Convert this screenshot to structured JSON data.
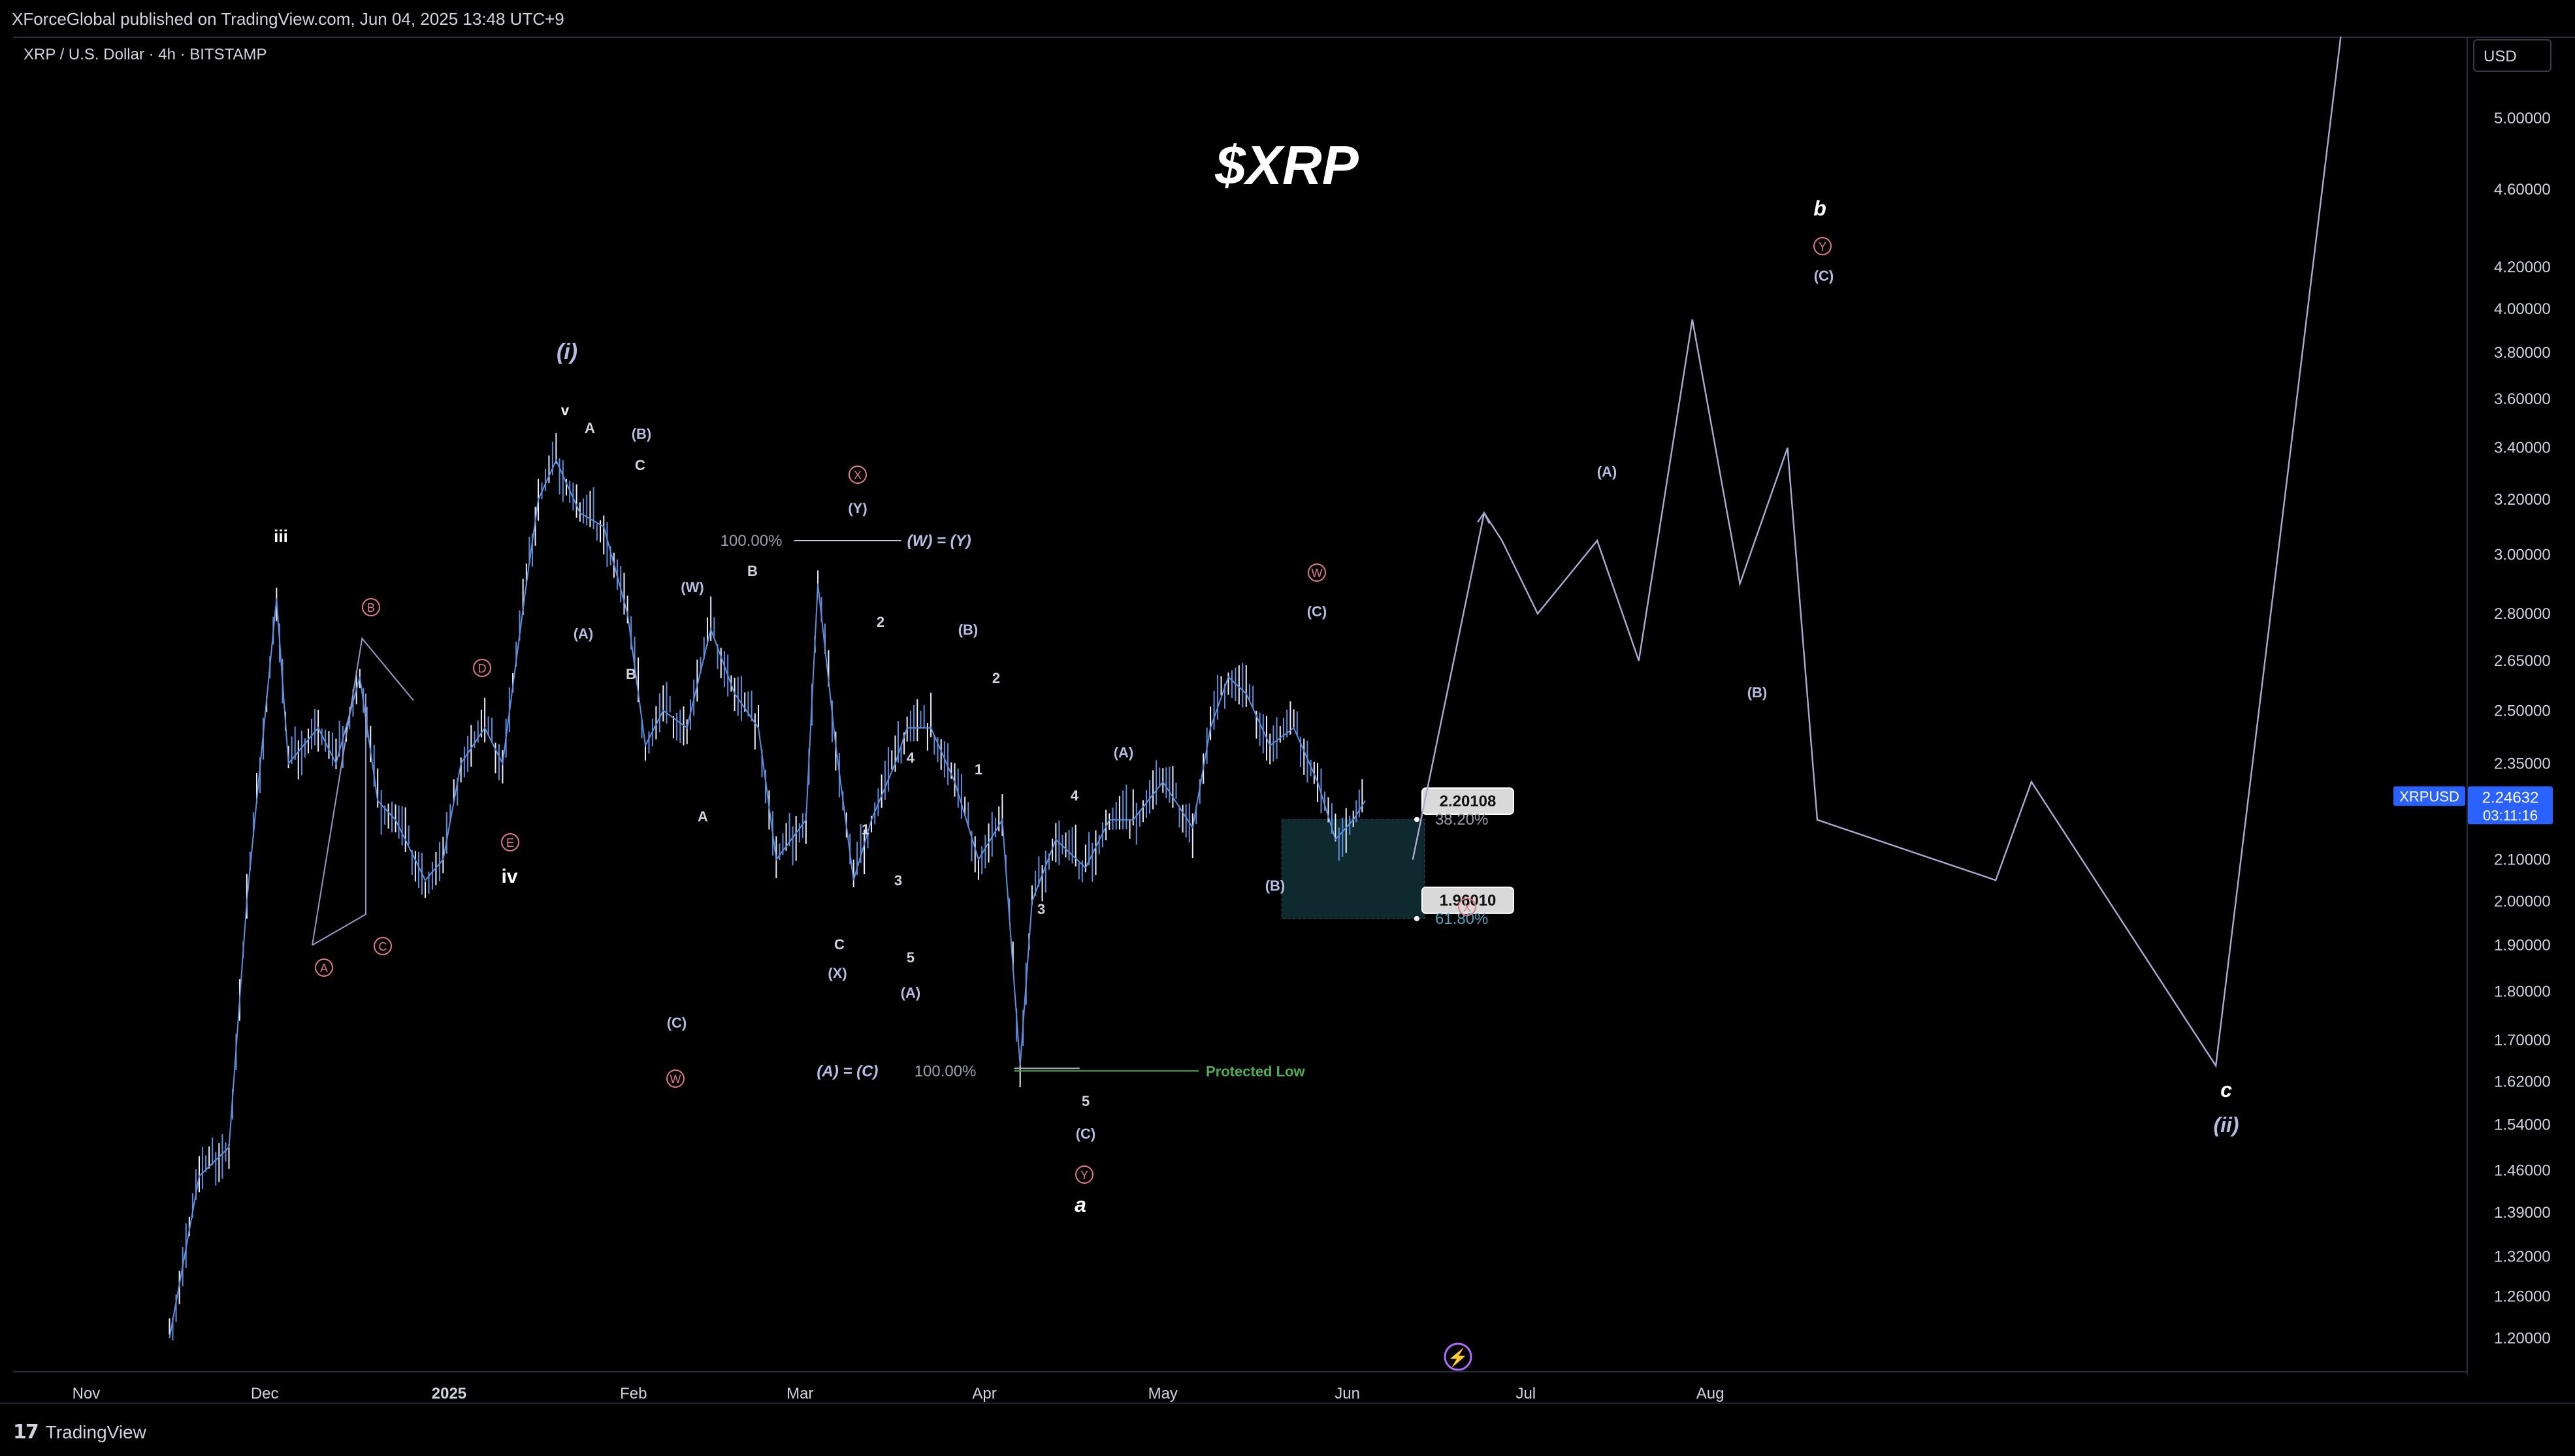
{
  "header": {
    "published": "XForceGlobal published on TradingView.com, Jun 04, 2025 13:48 UTC+9"
  },
  "symbol": "XRP / U.S. Dollar · 4h · BITSTAMP",
  "currency": "USD",
  "footer": {
    "brand": "TradingView"
  },
  "colors": {
    "background": "#000000",
    "candles": "#5b8fdb",
    "wave_line": "#9598c4",
    "circle_label": "#e07a8a",
    "box_fill": "#0e2a2e",
    "protected_low": "#4caf50",
    "price_tag": "#2962ff"
  },
  "chart_data": {
    "type": "line",
    "title": "$XRP",
    "scale": "log",
    "ylim": [
      1.15,
      5.4
    ],
    "y_ticks": [
      "5.00000",
      "4.60000",
      "4.20000",
      "4.00000",
      "3.80000",
      "3.60000",
      "3.40000",
      "3.20000",
      "3.00000",
      "2.80000",
      "2.65000",
      "2.50000",
      "2.35000",
      "2.10000",
      "2.00000",
      "1.90000",
      "1.80000",
      "1.70000",
      "1.62000",
      "1.54000",
      "1.46000",
      "1.39000",
      "1.32000",
      "1.26000",
      "1.20000"
    ],
    "x_ticks": [
      "Nov",
      "Dec",
      "2025",
      "Feb",
      "Mar",
      "Apr",
      "May",
      "Jun",
      "Jul",
      "Aug"
    ],
    "current_price": {
      "symbol": "XRPUSD",
      "value": "2.24632",
      "countdown": "03:11:16"
    },
    "series": [
      {
        "type": "candles-close",
        "x": [
          "2024-11-15",
          "2024-11-20",
          "2024-11-25",
          "2024-11-28",
          "2024-12-03",
          "2024-12-05",
          "2024-12-10",
          "2024-12-13",
          "2024-12-17",
          "2024-12-20",
          "2024-12-23",
          "2024-12-28",
          "2024-12-31",
          "2025-01-03",
          "2025-01-07",
          "2025-01-10",
          "2025-01-14",
          "2025-01-16",
          "2025-01-19",
          "2025-01-23",
          "2025-01-27",
          "2025-01-31",
          "2025-02-03",
          "2025-02-06",
          "2025-02-10",
          "2025-02-14",
          "2025-02-18",
          "2025-02-22",
          "2025-02-25",
          "2025-03-02",
          "2025-03-04",
          "2025-03-07",
          "2025-03-10",
          "2025-03-13",
          "2025-03-17",
          "2025-03-19",
          "2025-03-23",
          "2025-03-27",
          "2025-03-31",
          "2025-04-04",
          "2025-04-07",
          "2025-04-09",
          "2025-04-13",
          "2025-04-18",
          "2025-04-22",
          "2025-04-26",
          "2025-05-01",
          "2025-05-06",
          "2025-05-09",
          "2025-05-12",
          "2025-05-15",
          "2025-05-19",
          "2025-05-23",
          "2025-05-27",
          "2025-05-30",
          "2025-06-02",
          "2025-06-04"
        ],
        "y": [
          1.2,
          1.45,
          1.5,
          2.0,
          2.85,
          2.35,
          2.45,
          2.35,
          2.6,
          2.25,
          2.2,
          2.05,
          2.1,
          2.35,
          2.45,
          2.35,
          2.9,
          3.2,
          3.35,
          3.15,
          3.1,
          2.8,
          2.4,
          2.5,
          2.45,
          2.75,
          2.55,
          2.45,
          2.1,
          2.2,
          2.9,
          2.4,
          2.05,
          2.2,
          2.35,
          2.45,
          2.45,
          2.3,
          2.1,
          2.2,
          1.65,
          2.0,
          2.15,
          2.08,
          2.2,
          2.2,
          2.3,
          2.18,
          2.45,
          2.6,
          2.55,
          2.4,
          2.45,
          2.3,
          2.15,
          2.2,
          2.25
        ]
      },
      {
        "type": "projection",
        "x": [
          "2025-06-12",
          "2025-06-24",
          "2025-06-27",
          "2025-07-03",
          "2025-07-13",
          "2025-07-20",
          "2025-07-29",
          "2025-08-06",
          "2025-08-14",
          "2025-08-19",
          "2025-09-18",
          "2025-09-24",
          "2025-10-25",
          "2025-11-15"
        ],
        "y": [
          2.1,
          3.15,
          3.05,
          2.8,
          3.05,
          2.65,
          3.95,
          2.9,
          3.4,
          2.2,
          2.05,
          2.3,
          1.65,
          5.5
        ]
      }
    ],
    "fib_levels": [
      {
        "label": "2.20108",
        "percent": "38.20%",
        "value": 2.20108
      },
      {
        "label": "1.96010",
        "percent": "61.80%",
        "value": 1.9601
      }
    ],
    "annotations": {
      "protected_low": {
        "text": "Protected Low",
        "value": 1.64
      },
      "ratio_w_y": "(W) = (Y)",
      "ratio_w_y_pct": "100.00%",
      "ratio_a_c": "(A) = (C)",
      "ratio_a_c_pct": "100.00%",
      "wave_labels": [
        "iii",
        "iv",
        "v",
        "A",
        "B",
        "C",
        "(i)",
        "(A)",
        "(B)",
        "(W)",
        "(C)",
        "(X)",
        "(Y)",
        "1",
        "2",
        "3",
        "4",
        "5",
        "a",
        "b",
        "c",
        "(ii)"
      ],
      "circled_labels": [
        "A",
        "B",
        "C",
        "D",
        "E",
        "W",
        "X",
        "Y"
      ]
    }
  }
}
